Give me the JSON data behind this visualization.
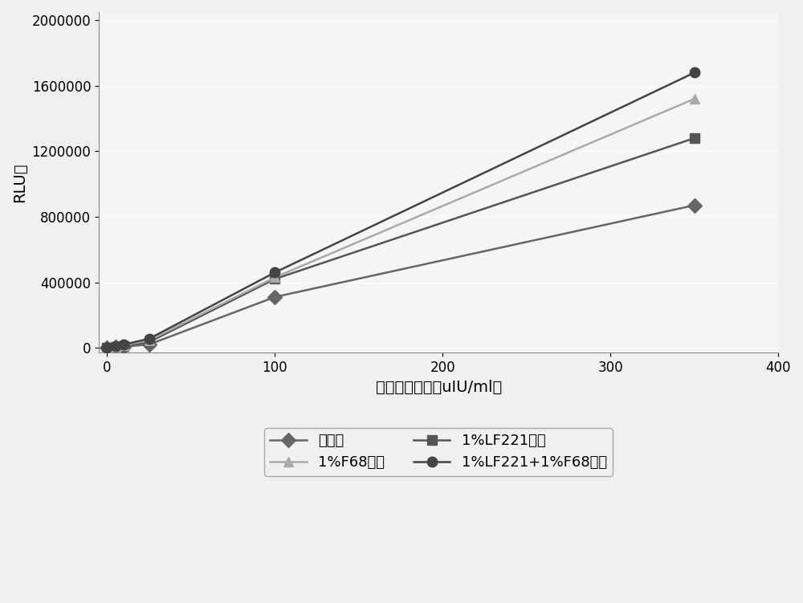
{
  "x": [
    0,
    5,
    10,
    25,
    100,
    350
  ],
  "series_order": [
    "无处理",
    "1%LF221处理",
    "1%F68处理",
    "1%LF221+1%F68处理"
  ],
  "series": {
    "无处理": {
      "y": [
        0,
        3000,
        7000,
        20000,
        310000,
        870000
      ],
      "color": "#666666",
      "marker": "D",
      "markersize": 9,
      "linewidth": 1.8,
      "linestyle": "-",
      "zorder": 3
    },
    "1%LF221处理": {
      "y": [
        0,
        5000,
        12000,
        35000,
        420000,
        1280000
      ],
      "color": "#555555",
      "marker": "s",
      "markersize": 9,
      "linewidth": 1.8,
      "linestyle": "-",
      "zorder": 3
    },
    "1%F68处理": {
      "y": [
        0,
        7000,
        16000,
        45000,
        430000,
        1520000
      ],
      "color": "#aaaaaa",
      "marker": "^",
      "markersize": 9,
      "linewidth": 1.8,
      "linestyle": "-",
      "zorder": 3
    },
    "1%LF221+1%F68处理": {
      "y": [
        0,
        9000,
        20000,
        55000,
        460000,
        1680000
      ],
      "color": "#444444",
      "marker": "o",
      "markersize": 9,
      "linewidth": 1.8,
      "linestyle": "-",
      "zorder": 4
    }
  },
  "ylabel": "RLU值",
  "xlabel": "胰岛素浓度值（uIU/ml）",
  "xlim": [
    -5,
    400
  ],
  "ylim": [
    -30000,
    2050000
  ],
  "xticks": [
    0,
    100,
    200,
    300,
    400
  ],
  "yticks": [
    0,
    400000,
    800000,
    1200000,
    1600000,
    2000000
  ],
  "ytick_labels": [
    "0",
    "400000",
    "800000",
    "1200000",
    "1600000",
    "2000000"
  ],
  "figsize": [
    10.0,
    7.51
  ],
  "dpi": 100,
  "background_color": "#f0f0f0",
  "plot_bg_color": "#f5f5f5",
  "grid": true,
  "grid_color": "#ffffff",
  "legend_fontsize": 13,
  "axis_label_fontsize": 14,
  "tick_fontsize": 12,
  "legend_ncol": 2,
  "legend_order": [
    "无处理",
    "1%F68处理",
    "1%LF221处理",
    "1%LF221+1%F68处理"
  ]
}
